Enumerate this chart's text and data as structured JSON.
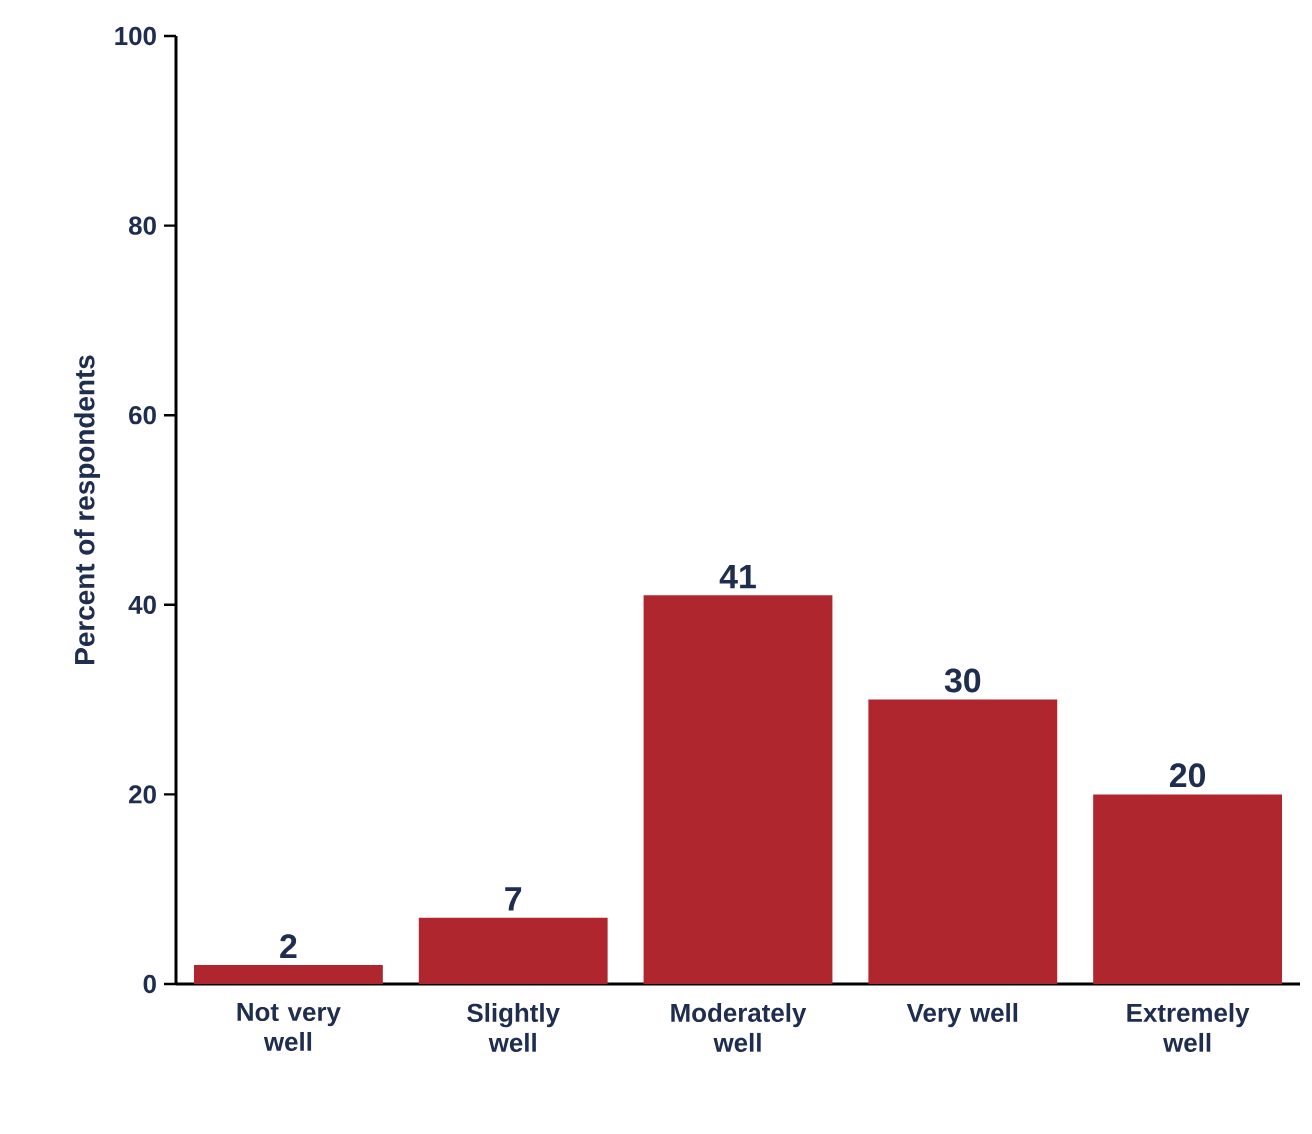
{
  "chart_data": {
    "type": "bar",
    "ylabel": "Percent of respondents",
    "categories": [
      "Not very well",
      "Slightly well",
      "Moderately well",
      "Very well",
      "Extremely well"
    ],
    "values": [
      2,
      7,
      41,
      30,
      20
    ],
    "color": "#b0262f",
    "data_labels": true,
    "ylim": [
      0,
      100
    ],
    "yticks": [
      0,
      20,
      40,
      60,
      80,
      100
    ],
    "grid": false
  }
}
